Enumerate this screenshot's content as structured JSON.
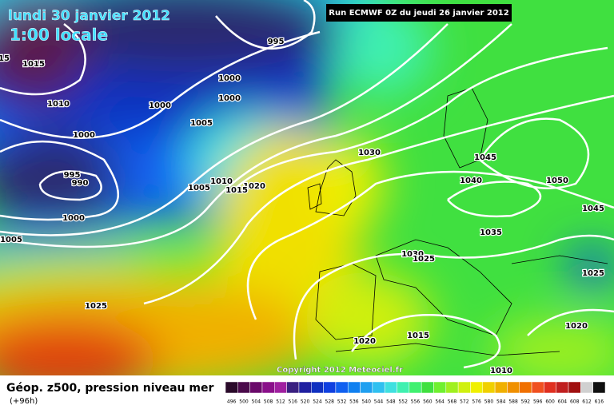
{
  "header": {
    "date": "lundi 30 janvier 2012",
    "time": "1:00 locale",
    "run": "Run ECMWF 0Z du jeudi 26 janvier 2012"
  },
  "isobar_labels": [
    "15",
    "995",
    "1015",
    "1000",
    "1000",
    "1010",
    "1000",
    "1005",
    "1000",
    "1030",
    "1045",
    "995",
    "990",
    "1010",
    "1020",
    "1005",
    "1015",
    "1040",
    "1050",
    "1045",
    "1000",
    "1035",
    "1005",
    "1030",
    "1025",
    "1025",
    "1025",
    "1020",
    "1015",
    "1020",
    "1010"
  ],
  "copyright": "Copyright 2012 Meteociel.fr",
  "footer": {
    "title": "Géop. z500, pression niveau mer",
    "lead": "(+96h)"
  },
  "colorbar": {
    "labels": [
      "496",
      "500",
      "504",
      "508",
      "512",
      "516",
      "520",
      "524",
      "528",
      "532",
      "536",
      "540",
      "544",
      "548",
      "552",
      "556",
      "560",
      "564",
      "568",
      "572",
      "576",
      "580",
      "584",
      "588",
      "592",
      "596",
      "600",
      "604",
      "608",
      "612",
      "616"
    ],
    "colors": [
      "#2a0a2a",
      "#4a0a4a",
      "#6a0a6a",
      "#8a108a",
      "#a020a0",
      "#3a2080",
      "#2020a0",
      "#1030c0",
      "#1040e0",
      "#1060f0",
      "#1080f0",
      "#20a0f0",
      "#30c0f0",
      "#40e0e0",
      "#40f0b0",
      "#40f070",
      "#40e040",
      "#70f030",
      "#a0f020",
      "#d0f010",
      "#f0f000",
      "#f0d000",
      "#f0b000",
      "#f09000",
      "#f07000",
      "#f05020",
      "#e03020",
      "#c02020",
      "#a01010",
      "#d0d0d0",
      "#101010"
    ]
  }
}
